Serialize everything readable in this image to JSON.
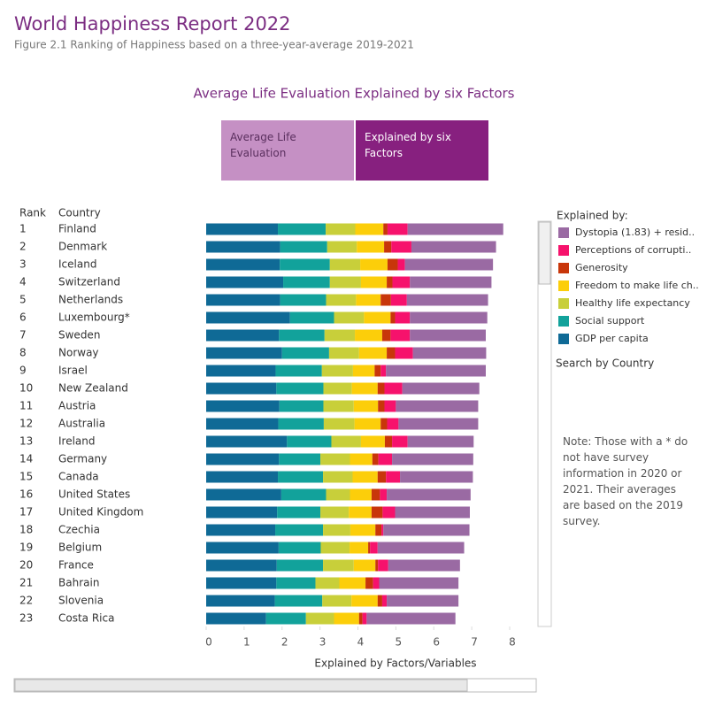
{
  "header": {
    "title": "World Happiness Report 2022",
    "subtitle": "Figure 2.1 Ranking of Happiness based on a three-year-average 2019-2021"
  },
  "toggle": {
    "options": [
      "Average Life Evaluation",
      "Explained by six Factors"
    ],
    "selected": 1
  },
  "chart_data": {
    "type": "hbar-stacked",
    "title": "Average Life Evaluation Explained by six Factors",
    "rank_header": "Rank",
    "category_header": "Country",
    "ranks": [
      1,
      2,
      3,
      4,
      5,
      6,
      7,
      8,
      9,
      10,
      11,
      12,
      13,
      14,
      15,
      16,
      17,
      18,
      19,
      20,
      21,
      22,
      23
    ],
    "categories": [
      "Finland",
      "Denmark",
      "Iceland",
      "Switzerland",
      "Netherlands",
      "Luxembourg*",
      "Sweden",
      "Norway",
      "Israel",
      "New Zealand",
      "Austria",
      "Australia",
      "Ireland",
      "Germany",
      "Canada",
      "United States",
      "United Kingdom",
      "Czechia",
      "Belgium",
      "France",
      "Bahrain",
      "Slovenia",
      "Costa Rica"
    ],
    "series": [
      {
        "name": "GDP per capita",
        "color": "#0f6a96",
        "values": [
          1.89,
          1.95,
          1.94,
          2.03,
          1.95,
          2.21,
          1.92,
          2.0,
          1.83,
          1.85,
          1.93,
          1.9,
          2.13,
          1.92,
          1.89,
          1.98,
          1.87,
          1.82,
          1.91,
          1.86,
          1.85,
          1.81,
          1.58
        ]
      },
      {
        "name": "Social support",
        "color": "#12a29b",
        "values": [
          1.26,
          1.24,
          1.32,
          1.23,
          1.21,
          1.16,
          1.2,
          1.24,
          1.22,
          1.24,
          1.16,
          1.2,
          1.17,
          1.09,
          1.19,
          1.18,
          1.14,
          1.26,
          1.11,
          1.22,
          1.03,
          1.25,
          1.05
        ]
      },
      {
        "name": "Healthy life expectancy",
        "color": "#c8cf3a",
        "values": [
          0.78,
          0.78,
          0.8,
          0.82,
          0.79,
          0.79,
          0.8,
          0.79,
          0.82,
          0.75,
          0.8,
          0.81,
          0.78,
          0.78,
          0.78,
          0.63,
          0.75,
          0.72,
          0.76,
          0.81,
          0.63,
          0.77,
          0.74
        ]
      },
      {
        "name": "Freedom to make life ch..",
        "color": "#fcce0a",
        "values": [
          0.74,
          0.72,
          0.72,
          0.68,
          0.65,
          0.7,
          0.72,
          0.73,
          0.57,
          0.68,
          0.64,
          0.69,
          0.63,
          0.59,
          0.66,
          0.57,
          0.6,
          0.66,
          0.49,
          0.57,
          0.69,
          0.69,
          0.66
        ]
      },
      {
        "name": "Generosity",
        "color": "#c8360a",
        "values": [
          0.11,
          0.19,
          0.27,
          0.15,
          0.27,
          0.12,
          0.22,
          0.22,
          0.16,
          0.18,
          0.17,
          0.17,
          0.19,
          0.16,
          0.22,
          0.22,
          0.29,
          0.16,
          0.05,
          0.07,
          0.2,
          0.12,
          0.09
        ]
      },
      {
        "name": "Perceptions of corrupti..",
        "color": "#f6126c",
        "values": [
          0.53,
          0.53,
          0.19,
          0.46,
          0.42,
          0.39,
          0.51,
          0.47,
          0.14,
          0.47,
          0.3,
          0.3,
          0.41,
          0.36,
          0.37,
          0.18,
          0.33,
          0.05,
          0.2,
          0.27,
          0.16,
          0.12,
          0.11
        ]
      },
      {
        "name": "Dystopia (1.83) + resid..",
        "color": "#9a6aa3",
        "values": [
          2.52,
          2.23,
          2.32,
          2.15,
          2.14,
          2.04,
          2.0,
          1.93,
          2.63,
          2.03,
          2.17,
          2.1,
          1.74,
          2.14,
          1.92,
          2.21,
          1.97,
          2.27,
          2.28,
          1.89,
          2.09,
          1.89,
          2.34
        ]
      }
    ],
    "xlabel": "Explained by Factors/Variables",
    "xlim": [
      0,
      8
    ],
    "xticks": [
      0,
      1,
      2,
      3,
      4,
      5,
      6,
      7,
      8
    ],
    "legend_title": "Explained by:",
    "search_label": "Search by Country",
    "note": "Note: Those with a * do not have survey information in 2020 or 2021. Their averages are based on the 2019 survey."
  }
}
